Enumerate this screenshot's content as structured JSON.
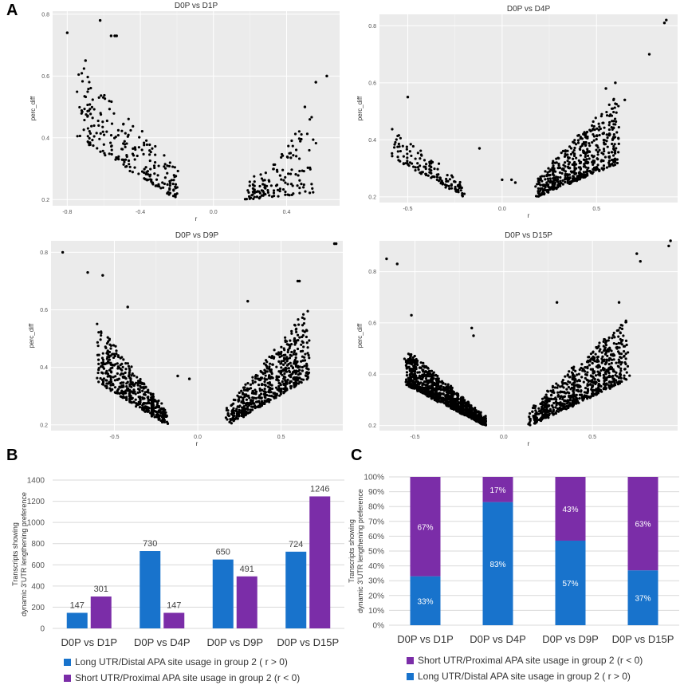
{
  "panels": {
    "a": "A",
    "b": "B",
    "c": "C"
  },
  "colors": {
    "long": "#1873cc",
    "short": "#7b2da8",
    "grid_bg": "#ebebeb",
    "point": "#000000"
  },
  "scatter_axes": {
    "xlabel": "r",
    "ylabel": "perc_diff"
  },
  "bar_ylabel": [
    "Transcripts showing",
    "dynamic 3'UTR lengthening preference"
  ],
  "chart_data": [
    {
      "type": "scatter",
      "id": "d1p",
      "title": "D0P vs D1P",
      "xlabel": "r",
      "ylabel": "perc_diff",
      "xlim": [
        -0.88,
        0.69
      ],
      "ylim": [
        0.18,
        0.81
      ],
      "xticks": [
        -0.8,
        -0.4,
        0.0,
        0.4
      ],
      "xtick_labels": [
        "-0.8",
        "-0.4",
        "0.0",
        "0.4"
      ],
      "yticks": [
        0.2,
        0.4,
        0.6,
        0.8
      ],
      "ytick_labels": [
        "0.2",
        "0.4",
        "0.6",
        "0.8"
      ],
      "clusters": [
        {
          "n": 230,
          "x": [
            -0.74,
            -0.2
          ],
          "ylow": [
            0.4,
            0.2
          ],
          "yhigh": [
            0.64,
            0.3
          ]
        },
        {
          "n": 140,
          "x": [
            0.18,
            0.55
          ],
          "ylow": [
            0.2,
            0.22
          ],
          "yhigh": [
            0.24,
            0.48
          ]
        }
      ],
      "outliers": [
        [
          -0.8,
          0.74
        ],
        [
          -0.62,
          0.78
        ],
        [
          -0.56,
          0.73
        ],
        [
          -0.54,
          0.73
        ],
        [
          -0.53,
          0.73
        ],
        [
          -0.7,
          0.65
        ],
        [
          0.62,
          0.6
        ],
        [
          0.56,
          0.58
        ],
        [
          0.5,
          0.5
        ]
      ]
    },
    {
      "type": "scatter",
      "id": "d4p",
      "title": "D0P vs D4P",
      "xlabel": "r",
      "ylabel": "perc_diff",
      "xlim": [
        -0.65,
        0.93
      ],
      "ylim": [
        0.18,
        0.84
      ],
      "xticks": [
        -0.5,
        0.0,
        0.5
      ],
      "xtick_labels": [
        "-0.5",
        "0.0",
        "0.5"
      ],
      "yticks": [
        0.2,
        0.4,
        0.6,
        0.8
      ],
      "ytick_labels": [
        "0.2",
        "0.4",
        "0.6",
        "0.8"
      ],
      "clusters": [
        {
          "n": 140,
          "x": [
            -0.58,
            -0.2
          ],
          "ylow": [
            0.34,
            0.2
          ],
          "yhigh": [
            0.45,
            0.24
          ]
        },
        {
          "n": 520,
          "x": [
            0.18,
            0.62
          ],
          "ylow": [
            0.2,
            0.32
          ],
          "yhigh": [
            0.26,
            0.56
          ]
        }
      ],
      "outliers": [
        [
          -0.5,
          0.55
        ],
        [
          -0.12,
          0.37
        ],
        [
          0.0,
          0.26
        ],
        [
          0.05,
          0.26
        ],
        [
          0.07,
          0.25
        ],
        [
          0.6,
          0.6
        ],
        [
          0.55,
          0.58
        ],
        [
          0.78,
          0.7
        ],
        [
          0.86,
          0.81
        ],
        [
          0.87,
          0.82
        ],
        [
          0.65,
          0.54
        ]
      ]
    },
    {
      "type": "scatter",
      "id": "d9p",
      "title": "D0P vs D9P",
      "xlabel": "r",
      "ylabel": "perc_diff",
      "xlim": [
        -0.88,
        0.87
      ],
      "ylim": [
        0.18,
        0.84
      ],
      "xticks": [
        -0.5,
        0.0,
        0.5
      ],
      "xtick_labels": [
        "-0.5",
        "0.0",
        "0.5"
      ],
      "yticks": [
        0.2,
        0.4,
        0.6,
        0.8
      ],
      "ytick_labels": [
        "0.2",
        "0.4",
        "0.6",
        "0.8"
      ],
      "clusters": [
        {
          "n": 460,
          "x": [
            -0.6,
            -0.18
          ],
          "ylow": [
            0.35,
            0.2
          ],
          "yhigh": [
            0.56,
            0.24
          ]
        },
        {
          "n": 600,
          "x": [
            0.18,
            0.66
          ],
          "ylow": [
            0.2,
            0.36
          ],
          "yhigh": [
            0.26,
            0.6
          ]
        }
      ],
      "outliers": [
        [
          -0.81,
          0.8
        ],
        [
          -0.66,
          0.73
        ],
        [
          -0.57,
          0.72
        ],
        [
          -0.42,
          0.61
        ],
        [
          -0.12,
          0.37
        ],
        [
          -0.05,
          0.36
        ],
        [
          0.3,
          0.63
        ],
        [
          0.6,
          0.7
        ],
        [
          0.61,
          0.7
        ],
        [
          0.83,
          0.83
        ],
        [
          0.82,
          0.83
        ]
      ]
    },
    {
      "type": "scatter",
      "id": "d15p",
      "title": "D0P vs D15P",
      "xlabel": "r",
      "ylabel": "perc_diff",
      "xlim": [
        -0.7,
        0.98
      ],
      "ylim": [
        0.18,
        0.92
      ],
      "xticks": [
        -0.5,
        0.0,
        0.5
      ],
      "xtick_labels": [
        "-0.5",
        "0.0",
        "0.5"
      ],
      "yticks": [
        0.2,
        0.4,
        0.6,
        0.8
      ],
      "ytick_labels": [
        "0.2",
        "0.4",
        "0.6",
        "0.8"
      ],
      "clusters": [
        {
          "n": 1050,
          "x": [
            -0.55,
            -0.1
          ],
          "ylow": [
            0.36,
            0.2
          ],
          "yhigh": [
            0.5,
            0.23
          ]
        },
        {
          "n": 720,
          "x": [
            0.15,
            0.7
          ],
          "ylow": [
            0.2,
            0.38
          ],
          "yhigh": [
            0.27,
            0.62
          ]
        }
      ],
      "outliers": [
        [
          -0.66,
          0.85
        ],
        [
          -0.6,
          0.83
        ],
        [
          -0.52,
          0.63
        ],
        [
          -0.18,
          0.58
        ],
        [
          -0.17,
          0.55
        ],
        [
          0.3,
          0.68
        ],
        [
          0.65,
          0.68
        ],
        [
          0.75,
          0.87
        ],
        [
          0.77,
          0.84
        ],
        [
          0.93,
          0.9
        ],
        [
          0.94,
          0.92
        ]
      ]
    },
    {
      "type": "bar",
      "id": "counts",
      "categories": [
        "D0P vs D1P",
        "D0P vs D4P",
        "D0P vs D9P",
        "D0P vs D15P"
      ],
      "series": [
        {
          "name": "Long UTR/Distal APA site usage in group 2 ( r > 0)",
          "values": [
            147,
            730,
            650,
            724
          ],
          "color": "#1873cc"
        },
        {
          "name": "Short UTR/Proximal APA site usage in group 2 (r < 0)",
          "values": [
            301,
            147,
            491,
            1246
          ],
          "color": "#7b2da8"
        }
      ],
      "ylim": [
        0,
        1400
      ],
      "yticks": [
        0,
        200,
        400,
        600,
        800,
        1000,
        1200,
        1400
      ],
      "ylabel": "Transcripts showing dynamic 3'UTR lengthening preference",
      "legend": "bottom"
    },
    {
      "type": "bar",
      "stacked": true,
      "id": "percent",
      "categories": [
        "D0P vs D1P",
        "D0P vs D4P",
        "D0P vs D9P",
        "D0P vs D15P"
      ],
      "series": [
        {
          "name": "Long UTR/Distal APA site usage in group 2 ( r > 0)",
          "values": [
            33,
            83,
            57,
            37
          ],
          "labels": [
            "33%",
            "83%",
            "57%",
            "37%"
          ],
          "color": "#1873cc"
        },
        {
          "name": "Short UTR/Proximal APA site usage in group 2 (r < 0)",
          "values": [
            67,
            17,
            43,
            63
          ],
          "labels": [
            "67%",
            "17%",
            "43%",
            "63%"
          ],
          "color": "#7b2da8"
        }
      ],
      "ylim": [
        0,
        100
      ],
      "yticks": [
        0,
        10,
        20,
        30,
        40,
        50,
        60,
        70,
        80,
        90,
        100
      ],
      "ytick_labels": [
        "0%",
        "10%",
        "20%",
        "30%",
        "40%",
        "50%",
        "60%",
        "70%",
        "80%",
        "90%",
        "100%"
      ],
      "ylabel": "Transcripts showing dynamic 3'UTR lengthening preference",
      "legend": "bottom",
      "legend_order": [
        "Short UTR/Proximal APA site usage in group 2 (r < 0)",
        "Long UTR/Distal APA site usage in group 2 ( r > 0)"
      ]
    }
  ]
}
